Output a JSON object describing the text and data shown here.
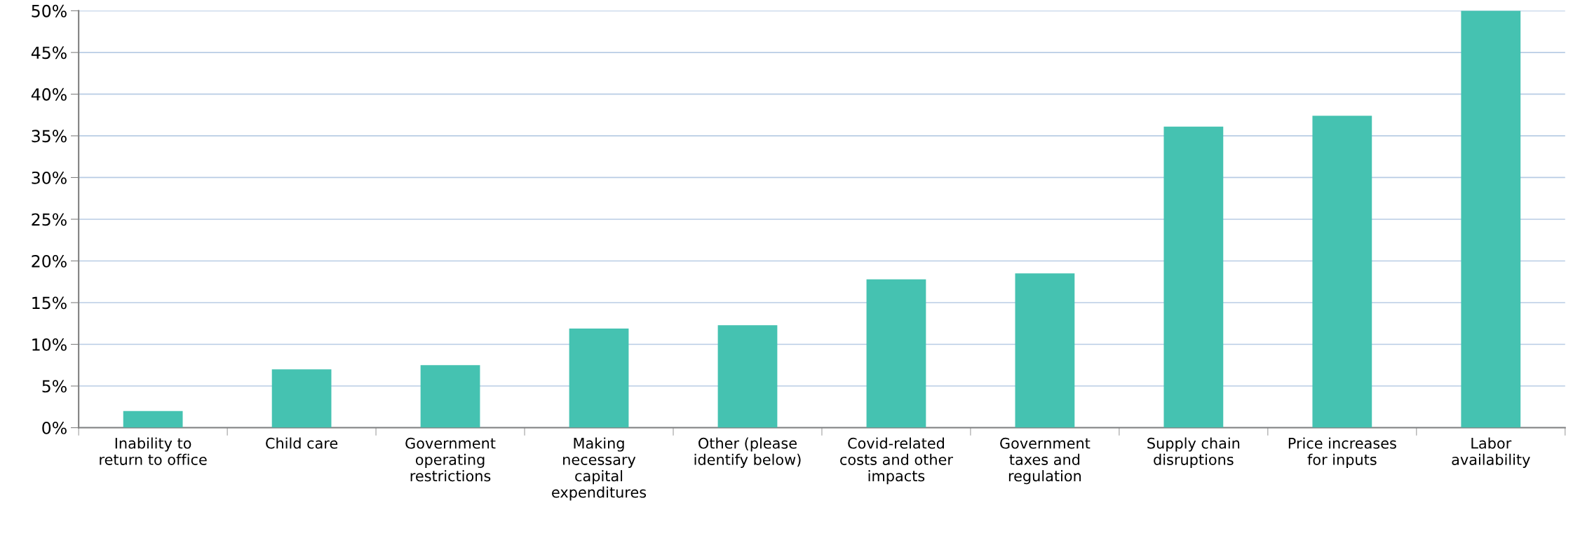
{
  "chart_data": {
    "type": "bar",
    "categories": [
      "Inability to\nreturn to office",
      "Child care",
      "Government\noperating\nrestrictions",
      "Making\nnecessary\ncapital\nexpenditures",
      "Other (please\nidentify below)",
      "Covid-related\ncosts and other\nimpacts",
      "Government\ntaxes and\nregulation",
      "Supply chain\ndisruptions",
      "Price increases\nfor inputs",
      "Labor\navailability"
    ],
    "values": [
      2.0,
      7.0,
      7.5,
      11.9,
      12.3,
      17.8,
      18.5,
      36.1,
      37.4,
      50.0
    ],
    "color": "#45c2b1",
    "ylim": [
      0,
      50
    ],
    "yticks": [
      {
        "value": 0,
        "label": "0%"
      },
      {
        "value": 5,
        "label": "5%"
      },
      {
        "value": 10,
        "label": "10%"
      },
      {
        "value": 15,
        "label": "15%"
      },
      {
        "value": 20,
        "label": "20%"
      },
      {
        "value": 25,
        "label": "25%"
      },
      {
        "value": 30,
        "label": "30%"
      },
      {
        "value": 35,
        "label": "35%"
      },
      {
        "value": 40,
        "label": "40%"
      },
      {
        "value": 45,
        "label": "45%"
      },
      {
        "value": 50,
        "label": "50%"
      }
    ],
    "grid": "y"
  }
}
